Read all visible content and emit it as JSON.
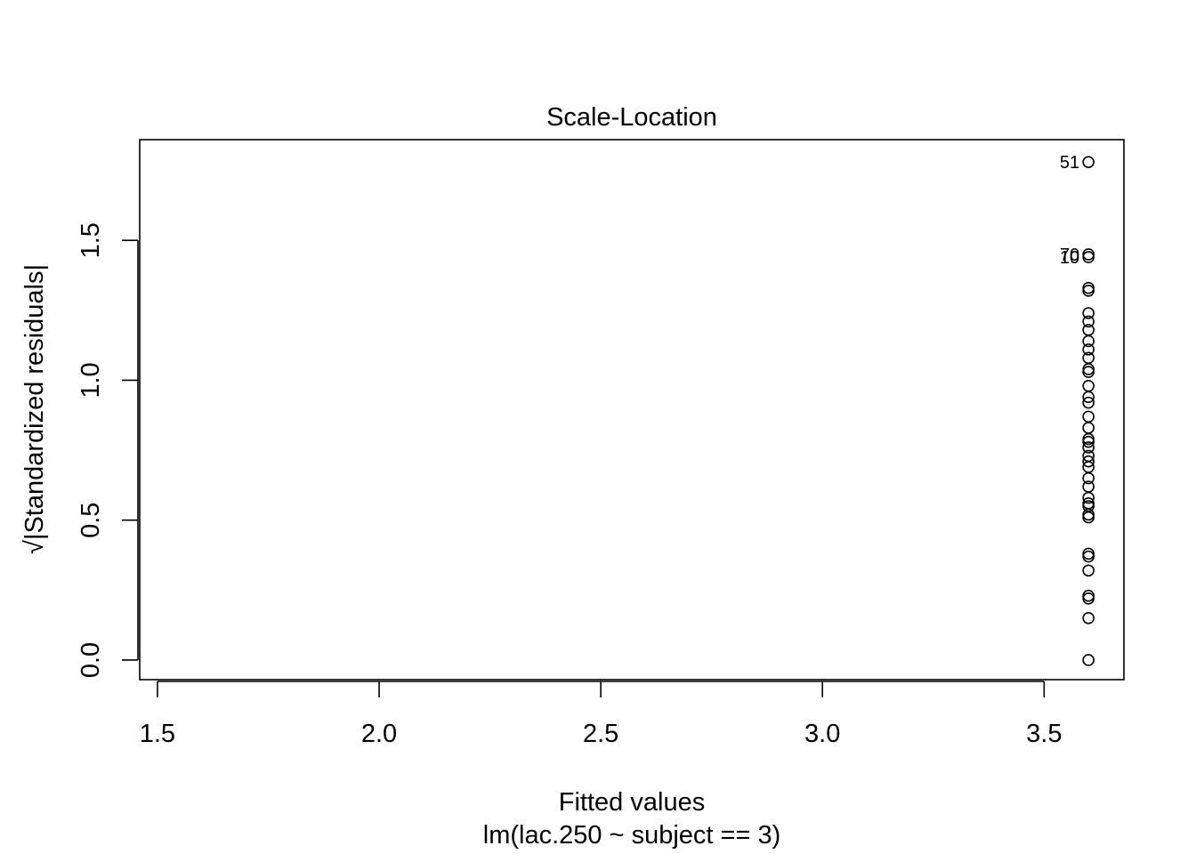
{
  "chart_data": {
    "type": "scatter",
    "title": "Scale-Location",
    "xlabel": "Fitted values",
    "ylabel": "√|Standardized residuals|",
    "subtitle": "lm(lac.250 ~ subject == 3)",
    "xlim": [
      1.46,
      3.68
    ],
    "ylim": [
      -0.07,
      1.86
    ],
    "x_ticks": [
      "1.5",
      "2.0",
      "2.5",
      "3.0",
      "3.5"
    ],
    "y_ticks": [
      "0.0",
      "0.5",
      "1.0",
      "1.5"
    ],
    "grid": false,
    "legend": "none",
    "points": [
      {
        "x": 3.6,
        "y": 1.78
      },
      {
        "x": 3.6,
        "y": 1.45
      },
      {
        "x": 3.6,
        "y": 1.44
      },
      {
        "x": 3.6,
        "y": 1.33
      },
      {
        "x": 3.6,
        "y": 1.32
      },
      {
        "x": 3.6,
        "y": 1.24
      },
      {
        "x": 3.6,
        "y": 1.21
      },
      {
        "x": 3.6,
        "y": 1.18
      },
      {
        "x": 3.6,
        "y": 1.14
      },
      {
        "x": 3.6,
        "y": 1.11
      },
      {
        "x": 3.6,
        "y": 1.08
      },
      {
        "x": 3.6,
        "y": 1.04
      },
      {
        "x": 3.6,
        "y": 1.03
      },
      {
        "x": 3.6,
        "y": 0.98
      },
      {
        "x": 3.6,
        "y": 0.94
      },
      {
        "x": 3.6,
        "y": 0.92
      },
      {
        "x": 3.6,
        "y": 0.87
      },
      {
        "x": 3.6,
        "y": 0.83
      },
      {
        "x": 3.6,
        "y": 0.79
      },
      {
        "x": 3.6,
        "y": 0.78
      },
      {
        "x": 3.6,
        "y": 0.76
      },
      {
        "x": 3.6,
        "y": 0.73
      },
      {
        "x": 3.6,
        "y": 0.71
      },
      {
        "x": 3.6,
        "y": 0.69
      },
      {
        "x": 3.6,
        "y": 0.65
      },
      {
        "x": 3.6,
        "y": 0.62
      },
      {
        "x": 3.6,
        "y": 0.58
      },
      {
        "x": 3.6,
        "y": 0.56
      },
      {
        "x": 3.6,
        "y": 0.55
      },
      {
        "x": 3.6,
        "y": 0.52
      },
      {
        "x": 3.6,
        "y": 0.51
      },
      {
        "x": 3.6,
        "y": 0.38
      },
      {
        "x": 3.6,
        "y": 0.37
      },
      {
        "x": 3.6,
        "y": 0.32
      },
      {
        "x": 3.6,
        "y": 0.23
      },
      {
        "x": 3.6,
        "y": 0.22
      },
      {
        "x": 3.6,
        "y": 0.15
      },
      {
        "x": 3.6,
        "y": 0.0
      }
    ],
    "point_labels": [
      {
        "text": "51",
        "x": 3.6,
        "y": 1.78
      },
      {
        "text": "70",
        "x": 3.6,
        "y": 1.45
      },
      {
        "text": "10",
        "x": 3.6,
        "y": 1.44
      }
    ],
    "colors": {
      "points": "#000000",
      "axes": "#000000",
      "background": "#ffffff"
    }
  }
}
